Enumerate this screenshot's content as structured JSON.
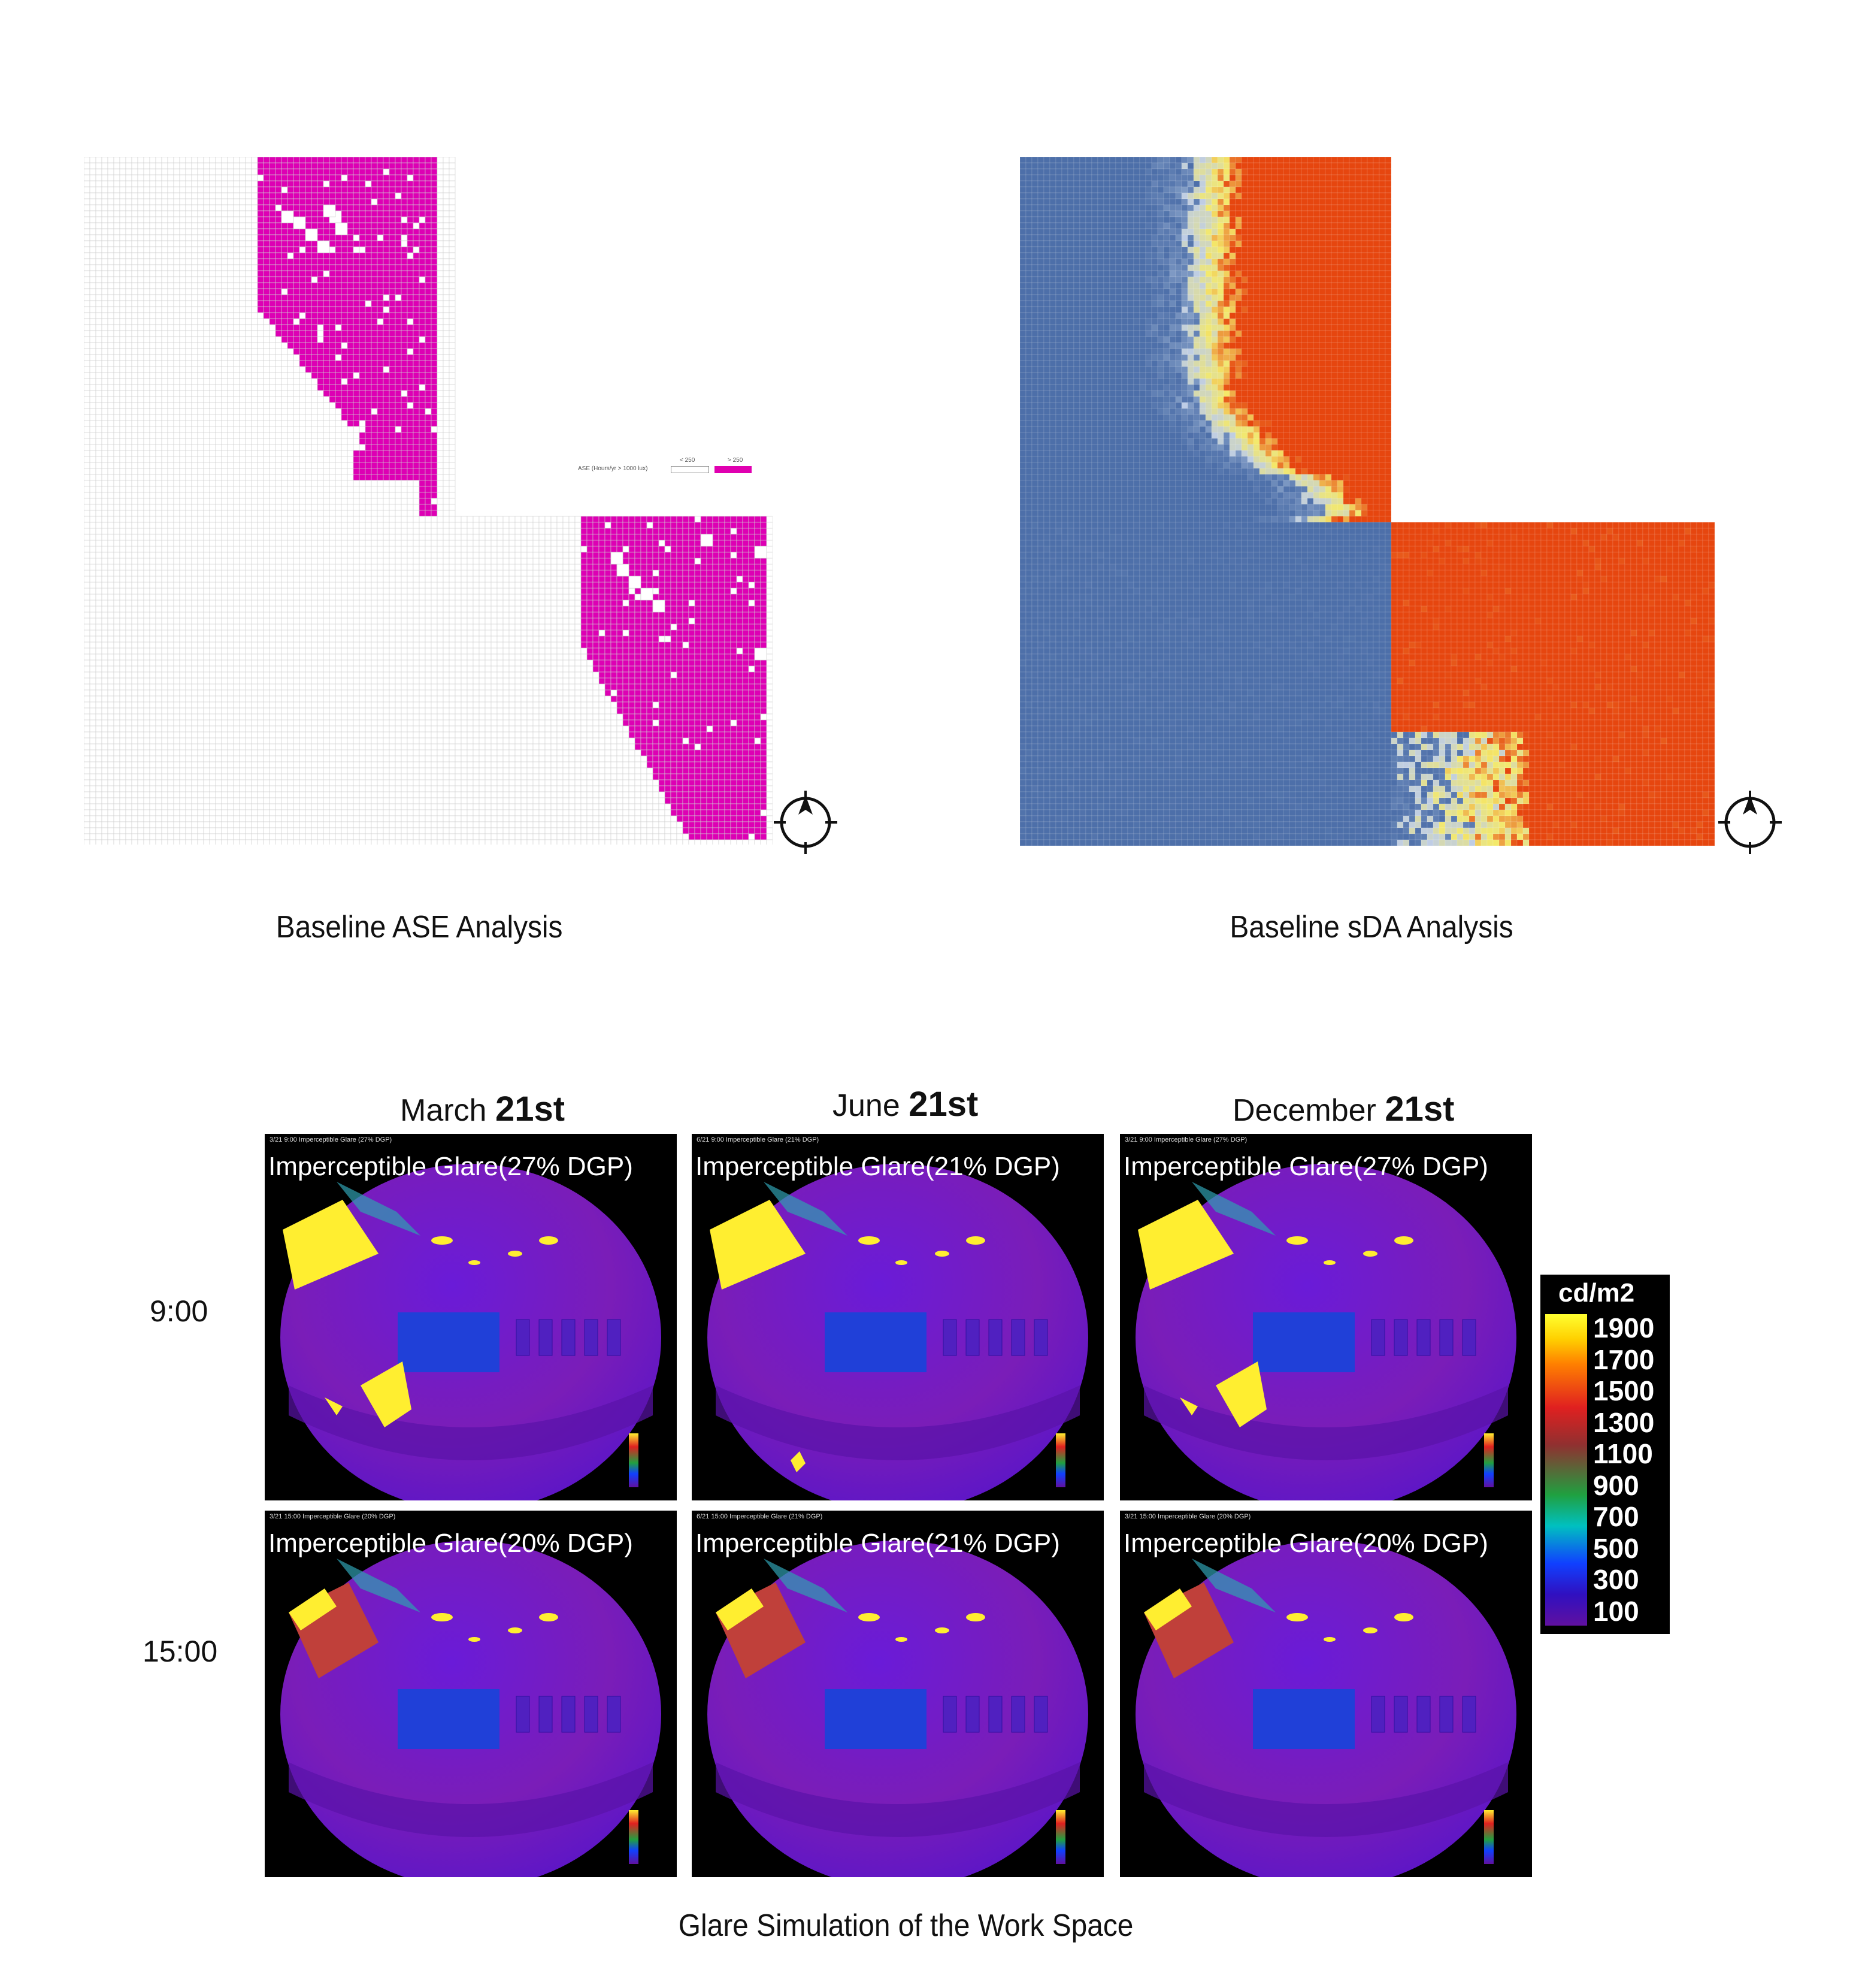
{
  "top": {
    "ase_caption": "Baseline ASE Analysis",
    "sda_caption": "Baseline sDA Analysis",
    "ase_legend": {
      "label": "ASE (Hours/yr > 1000 lux)",
      "low": "< 250",
      "high": "> 250",
      "high_color": "#e000b0"
    },
    "colors": {
      "ase_hot": "#dd00b4",
      "sda_low": "#4d6fa9",
      "sda_mid": "#f4e96a",
      "sda_high": "#e6460f"
    }
  },
  "glare": {
    "caption": "Glare Simulation of the Work Space",
    "columns": [
      {
        "month": "March",
        "day": "21st"
      },
      {
        "month": "June",
        "day": "21st"
      },
      {
        "month": "December",
        "day": "21st"
      }
    ],
    "rows": [
      {
        "time": "9:00"
      },
      {
        "time": "15:00"
      }
    ],
    "tiles": [
      {
        "small": "3/21 9:00  Imperceptible Glare (27% DGP)",
        "label": "Imperceptible Glare(27% DGP)"
      },
      {
        "small": "6/21 9:00  Imperceptible Glare (21% DGP)",
        "label": "Imperceptible Glare(21% DGP)"
      },
      {
        "small": "3/21 9:00  Imperceptible Glare (27% DGP)",
        "label": "Imperceptible Glare(27% DGP)"
      },
      {
        "small": "3/21 15:00  Imperceptible Glare (20% DGP)",
        "label": "Imperceptible Glare(20% DGP)"
      },
      {
        "small": "6/21 15:00  Imperceptible Glare (21% DGP)",
        "label": "Imperceptible Glare(21% DGP)"
      },
      {
        "small": "3/21 15:00  Imperceptible Glare (20% DGP)",
        "label": "Imperceptible Glare(20% DGP)"
      }
    ],
    "scale": {
      "unit": "cd/m2",
      "ticks": [
        "1900",
        "1700",
        "1500",
        "1300",
        "1100",
        "900",
        "700",
        "500",
        "300",
        "100"
      ]
    }
  }
}
